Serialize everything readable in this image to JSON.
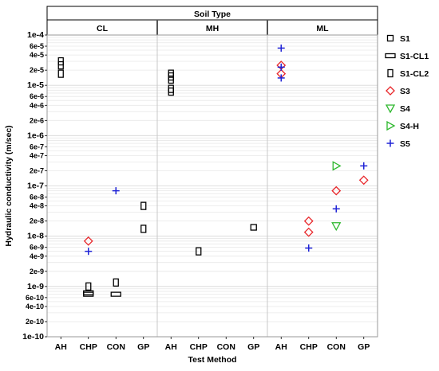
{
  "chart_data": {
    "type": "scatter",
    "title": "Soil Type",
    "xlabel": "Test Method",
    "ylabel": "Hydraulic conductivity (m/sec)",
    "y_scale": "log",
    "ylim": [
      1e-10,
      0.0001
    ],
    "panels": [
      "CL",
      "MH",
      "ML"
    ],
    "categories": [
      "AH",
      "CHP",
      "CON",
      "GP"
    ],
    "y_tick_labels": [
      {
        "value": 0.0001,
        "label": "1e-4"
      },
      {
        "value": 6e-05,
        "label": "6e-5"
      },
      {
        "value": 4e-05,
        "label": "4e-5"
      },
      {
        "value": 2e-05,
        "label": "2e-5"
      },
      {
        "value": 1e-05,
        "label": "1e-5"
      },
      {
        "value": 6e-06,
        "label": "6e-6"
      },
      {
        "value": 4e-06,
        "label": "4e-6"
      },
      {
        "value": 2e-06,
        "label": "2e-6"
      },
      {
        "value": 1e-06,
        "label": "1e-6"
      },
      {
        "value": 6e-07,
        "label": "6e-7"
      },
      {
        "value": 4e-07,
        "label": "4e-7"
      },
      {
        "value": 2e-07,
        "label": "2e-7"
      },
      {
        "value": 1e-07,
        "label": "1e-7"
      },
      {
        "value": 6e-08,
        "label": "6e-8"
      },
      {
        "value": 4e-08,
        "label": "4e-8"
      },
      {
        "value": 2e-08,
        "label": "2e-8"
      },
      {
        "value": 1e-08,
        "label": "1e-8"
      },
      {
        "value": 6e-09,
        "label": "6e-9"
      },
      {
        "value": 4e-09,
        "label": "4e-9"
      },
      {
        "value": 2e-09,
        "label": "2e-9"
      },
      {
        "value": 1e-09,
        "label": "1e-9"
      },
      {
        "value": 6e-10,
        "label": "6e-10"
      },
      {
        "value": 4e-10,
        "label": "4e-10"
      },
      {
        "value": 2e-10,
        "label": "2e-10"
      },
      {
        "value": 1e-10,
        "label": "1e-10"
      }
    ],
    "grid": true,
    "legend_position": "right",
    "series": [
      {
        "name": "S1",
        "marker": "square",
        "color": "#000000",
        "points": [
          {
            "panel": "MH",
            "x": "GP",
            "y": 1.5e-08
          }
        ]
      },
      {
        "name": "S1-CL1",
        "marker": "wide-rect",
        "color": "#000000",
        "points": [
          {
            "panel": "CL",
            "x": "CHP",
            "y": 7e-10
          },
          {
            "panel": "CL",
            "x": "CHP",
            "y": 7.5e-10
          },
          {
            "panel": "CL",
            "x": "CON",
            "y": 7e-10
          }
        ]
      },
      {
        "name": "S1-CL2",
        "marker": "tall-rect",
        "color": "#000000",
        "points": [
          {
            "panel": "CL",
            "x": "AH",
            "y": 3e-05
          },
          {
            "panel": "CL",
            "x": "AH",
            "y": 2.5e-05
          },
          {
            "panel": "CL",
            "x": "AH",
            "y": 1.7e-05
          },
          {
            "panel": "CL",
            "x": "CHP",
            "y": 1e-09
          },
          {
            "panel": "CL",
            "x": "CON",
            "y": 1.2e-09
          },
          {
            "panel": "CL",
            "x": "GP",
            "y": 4e-08
          },
          {
            "panel": "CL",
            "x": "GP",
            "y": 1.4e-08
          },
          {
            "panel": "MH",
            "x": "AH",
            "y": 1.7e-05
          },
          {
            "panel": "MH",
            "x": "AH",
            "y": 1.5e-05
          },
          {
            "panel": "MH",
            "x": "AH",
            "y": 1.3e-05
          },
          {
            "panel": "MH",
            "x": "AH",
            "y": 8.5e-06
          },
          {
            "panel": "MH",
            "x": "AH",
            "y": 7.5e-06
          },
          {
            "panel": "MH",
            "x": "CHP",
            "y": 5e-09
          }
        ]
      },
      {
        "name": "S3",
        "marker": "diamond",
        "color": "#e8262a",
        "points": [
          {
            "panel": "CL",
            "x": "CHP",
            "y": 8e-09
          },
          {
            "panel": "ML",
            "x": "AH",
            "y": 2.5e-05
          },
          {
            "panel": "ML",
            "x": "AH",
            "y": 1.7e-05
          },
          {
            "panel": "ML",
            "x": "CHP",
            "y": 2e-08
          },
          {
            "panel": "ML",
            "x": "CHP",
            "y": 1.2e-08
          },
          {
            "panel": "ML",
            "x": "CON",
            "y": 8e-08
          },
          {
            "panel": "ML",
            "x": "GP",
            "y": 1.3e-07
          }
        ]
      },
      {
        "name": "S4",
        "marker": "triangle-down",
        "color": "#2db82d",
        "points": [
          {
            "panel": "ML",
            "x": "CON",
            "y": 1.6e-08
          }
        ]
      },
      {
        "name": "S4-H",
        "marker": "triangle-right",
        "color": "#2db82d",
        "points": [
          {
            "panel": "ML",
            "x": "CON",
            "y": 2.5e-07
          }
        ]
      },
      {
        "name": "S5",
        "marker": "plus",
        "color": "#1f23d6",
        "points": [
          {
            "panel": "CL",
            "x": "CHP",
            "y": 5e-09
          },
          {
            "panel": "CL",
            "x": "CON",
            "y": 8e-08
          },
          {
            "panel": "ML",
            "x": "AH",
            "y": 5.5e-05
          },
          {
            "panel": "ML",
            "x": "AH",
            "y": 2.3e-05
          },
          {
            "panel": "ML",
            "x": "AH",
            "y": 1.4e-05
          },
          {
            "panel": "ML",
            "x": "CHP",
            "y": 5.8e-09
          },
          {
            "panel": "ML",
            "x": "CON",
            "y": 3.5e-08
          },
          {
            "panel": "ML",
            "x": "GP",
            "y": 2.5e-07
          }
        ]
      }
    ]
  }
}
